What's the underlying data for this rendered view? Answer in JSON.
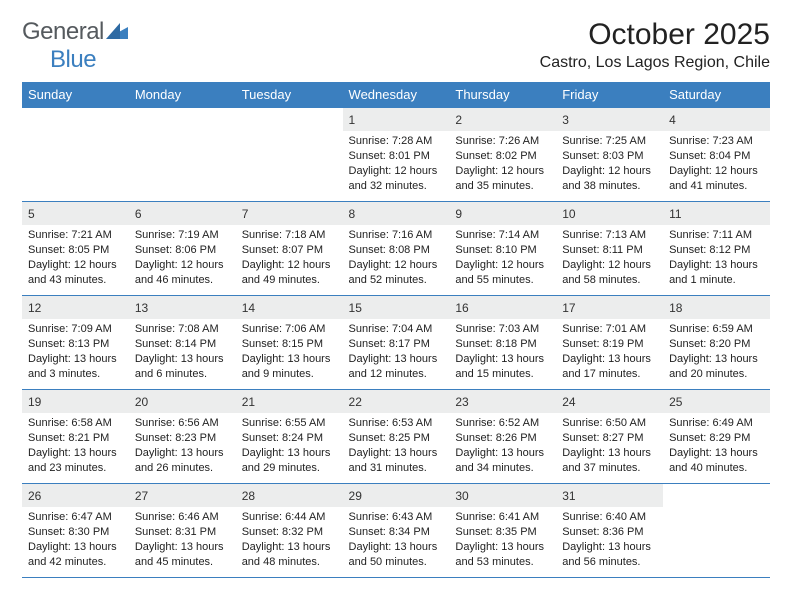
{
  "brand": {
    "part1": "General",
    "part2": "Blue"
  },
  "title": "October 2025",
  "subtitle": "Castro, Los Lagos Region, Chile",
  "theme": {
    "header_bg": "#3b7fbf",
    "header_fg": "#ffffff",
    "cell_border": "#3b7fbf",
    "daynum_bg": "#eceded",
    "page_bg": "#ffffff",
    "text": "#222222",
    "title_fontsize": 30,
    "subtitle_fontsize": 16,
    "dayhead_fontsize": 13,
    "daynum_fontsize": 12,
    "body_fontsize": 11
  },
  "day_headers": [
    "Sunday",
    "Monday",
    "Tuesday",
    "Wednesday",
    "Thursday",
    "Friday",
    "Saturday"
  ],
  "weeks": [
    [
      null,
      null,
      null,
      {
        "n": "1",
        "sunrise": "7:28 AM",
        "sunset": "8:01 PM",
        "daylight": "12 hours and 32 minutes."
      },
      {
        "n": "2",
        "sunrise": "7:26 AM",
        "sunset": "8:02 PM",
        "daylight": "12 hours and 35 minutes."
      },
      {
        "n": "3",
        "sunrise": "7:25 AM",
        "sunset": "8:03 PM",
        "daylight": "12 hours and 38 minutes."
      },
      {
        "n": "4",
        "sunrise": "7:23 AM",
        "sunset": "8:04 PM",
        "daylight": "12 hours and 41 minutes."
      }
    ],
    [
      {
        "n": "5",
        "sunrise": "7:21 AM",
        "sunset": "8:05 PM",
        "daylight": "12 hours and 43 minutes."
      },
      {
        "n": "6",
        "sunrise": "7:19 AM",
        "sunset": "8:06 PM",
        "daylight": "12 hours and 46 minutes."
      },
      {
        "n": "7",
        "sunrise": "7:18 AM",
        "sunset": "8:07 PM",
        "daylight": "12 hours and 49 minutes."
      },
      {
        "n": "8",
        "sunrise": "7:16 AM",
        "sunset": "8:08 PM",
        "daylight": "12 hours and 52 minutes."
      },
      {
        "n": "9",
        "sunrise": "7:14 AM",
        "sunset": "8:10 PM",
        "daylight": "12 hours and 55 minutes."
      },
      {
        "n": "10",
        "sunrise": "7:13 AM",
        "sunset": "8:11 PM",
        "daylight": "12 hours and 58 minutes."
      },
      {
        "n": "11",
        "sunrise": "7:11 AM",
        "sunset": "8:12 PM",
        "daylight": "13 hours and 1 minute."
      }
    ],
    [
      {
        "n": "12",
        "sunrise": "7:09 AM",
        "sunset": "8:13 PM",
        "daylight": "13 hours and 3 minutes."
      },
      {
        "n": "13",
        "sunrise": "7:08 AM",
        "sunset": "8:14 PM",
        "daylight": "13 hours and 6 minutes."
      },
      {
        "n": "14",
        "sunrise": "7:06 AM",
        "sunset": "8:15 PM",
        "daylight": "13 hours and 9 minutes."
      },
      {
        "n": "15",
        "sunrise": "7:04 AM",
        "sunset": "8:17 PM",
        "daylight": "13 hours and 12 minutes."
      },
      {
        "n": "16",
        "sunrise": "7:03 AM",
        "sunset": "8:18 PM",
        "daylight": "13 hours and 15 minutes."
      },
      {
        "n": "17",
        "sunrise": "7:01 AM",
        "sunset": "8:19 PM",
        "daylight": "13 hours and 17 minutes."
      },
      {
        "n": "18",
        "sunrise": "6:59 AM",
        "sunset": "8:20 PM",
        "daylight": "13 hours and 20 minutes."
      }
    ],
    [
      {
        "n": "19",
        "sunrise": "6:58 AM",
        "sunset": "8:21 PM",
        "daylight": "13 hours and 23 minutes."
      },
      {
        "n": "20",
        "sunrise": "6:56 AM",
        "sunset": "8:23 PM",
        "daylight": "13 hours and 26 minutes."
      },
      {
        "n": "21",
        "sunrise": "6:55 AM",
        "sunset": "8:24 PM",
        "daylight": "13 hours and 29 minutes."
      },
      {
        "n": "22",
        "sunrise": "6:53 AM",
        "sunset": "8:25 PM",
        "daylight": "13 hours and 31 minutes."
      },
      {
        "n": "23",
        "sunrise": "6:52 AM",
        "sunset": "8:26 PM",
        "daylight": "13 hours and 34 minutes."
      },
      {
        "n": "24",
        "sunrise": "6:50 AM",
        "sunset": "8:27 PM",
        "daylight": "13 hours and 37 minutes."
      },
      {
        "n": "25",
        "sunrise": "6:49 AM",
        "sunset": "8:29 PM",
        "daylight": "13 hours and 40 minutes."
      }
    ],
    [
      {
        "n": "26",
        "sunrise": "6:47 AM",
        "sunset": "8:30 PM",
        "daylight": "13 hours and 42 minutes."
      },
      {
        "n": "27",
        "sunrise": "6:46 AM",
        "sunset": "8:31 PM",
        "daylight": "13 hours and 45 minutes."
      },
      {
        "n": "28",
        "sunrise": "6:44 AM",
        "sunset": "8:32 PM",
        "daylight": "13 hours and 48 minutes."
      },
      {
        "n": "29",
        "sunrise": "6:43 AM",
        "sunset": "8:34 PM",
        "daylight": "13 hours and 50 minutes."
      },
      {
        "n": "30",
        "sunrise": "6:41 AM",
        "sunset": "8:35 PM",
        "daylight": "13 hours and 53 minutes."
      },
      {
        "n": "31",
        "sunrise": "6:40 AM",
        "sunset": "8:36 PM",
        "daylight": "13 hours and 56 minutes."
      },
      null
    ]
  ],
  "labels": {
    "sunrise": "Sunrise:",
    "sunset": "Sunset:",
    "daylight": "Daylight:"
  }
}
